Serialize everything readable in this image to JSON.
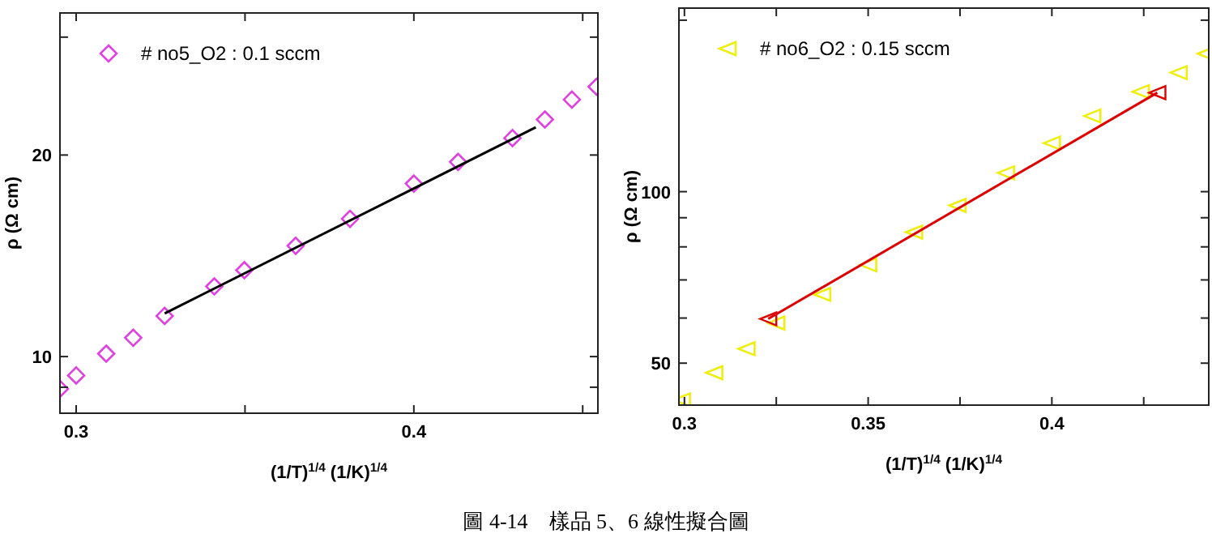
{
  "chart_data": [
    {
      "type": "scatter",
      "xlabel": "(1/T)$^{1/4}$ (1/K)$^{1/4}$",
      "ylabel": "ρ (Ω cm)",
      "log": "y",
      "legend": "top left",
      "grid": false,
      "marker": "diamond",
      "xlim": [
        0.2952,
        0.4545
      ],
      "xticks": [
        0.3,
        {
          "value": 0.35,
          "label": null
        },
        0.4,
        {
          "value": 0.45,
          "label": null
        }
      ],
      "ylim": [
        8.23,
        32.6
      ],
      "yticks": [
        {
          "value": 9,
          "label": null
        },
        10,
        20,
        {
          "value": 30,
          "label": null
        }
      ],
      "annotations": [
        "圖 4-14　樣品 5、6 線性擬合圖"
      ],
      "series": [
        {
          "name": "# no5_O2 : 0.1 sccm",
          "color": "#e040e0",
          "x": [
            0.2952,
            0.3,
            0.3089,
            0.3169,
            0.3262,
            0.3409,
            0.3498,
            0.365,
            0.3811,
            0.4,
            0.4131,
            0.4292,
            0.4388,
            0.4468,
            0.4541
          ],
          "values": [
            8.95,
            9.37,
            10.1,
            10.67,
            11.5,
            12.73,
            13.46,
            14.64,
            16.06,
            18.13,
            19.53,
            21.2,
            22.6,
            24.2,
            25.3
          ]
        },
        {
          "type": "line",
          "color": "#000000",
          "marker": "none",
          "x": [
            0.3262,
            0.4361
          ],
          "values": [
            11.6,
            22.0
          ]
        }
      ]
    },
    {
      "type": "scatter",
      "xlabel": "(1/T)$^{1/4}$ (1/K)$^{1/4}$",
      "ylabel": "ρ (Ω cm)",
      "log": "y",
      "legend": "top left",
      "grid": false,
      "marker": "triangle",
      "xlim": [
        0.2985,
        0.4427
      ],
      "xticks": [
        0.3,
        {
          "value": 0.325,
          "label": null
        },
        0.35,
        {
          "value": 0.375,
          "label": null
        },
        0.4,
        {
          "value": 0.425,
          "label": null
        }
      ],
      "ylim": [
        42.2,
        210
      ],
      "yticks": [
        50,
        {
          "value": 60,
          "label": null
        },
        {
          "value": 70,
          "label": null
        },
        {
          "value": 80,
          "label": null
        },
        {
          "value": 90,
          "label": null
        },
        100,
        {
          "value": 200,
          "label": null
        }
      ],
      "series": [
        {
          "name": "# no6_O2 : 0.15 sccm",
          "color": "#eeee10",
          "x": [
            0.2993,
            0.3081,
            0.3169,
            0.325,
            0.3375,
            0.35,
            0.3625,
            0.3743,
            0.3875,
            0.4,
            0.411,
            0.4242,
            0.4345,
            0.4419
          ],
          "values": [
            43.1,
            48.1,
            53.0,
            58.8,
            66.0,
            74.4,
            84.9,
            94.6,
            107.9,
            121.7,
            135.8,
            149.8,
            161.8,
            174.7
          ]
        },
        {
          "type": "line",
          "color": "#dd0000",
          "marker": "triangle",
          "x": [
            0.3228,
            0.4287
          ],
          "values": [
            59.8,
            149.2
          ]
        }
      ]
    }
  ]
}
